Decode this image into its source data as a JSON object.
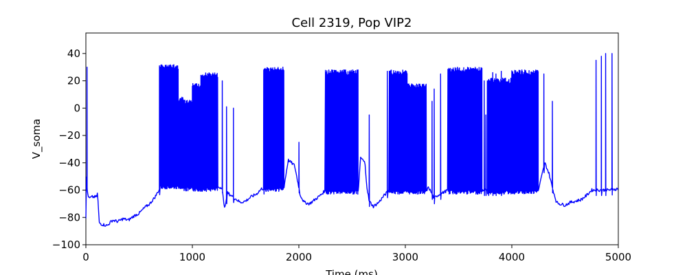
{
  "chart_data": {
    "type": "line",
    "title": "Cell 2319, Pop VIP2",
    "xlabel": "Time (ms)",
    "ylabel": "V_soma",
    "xlim": [
      0,
      5000
    ],
    "ylim": [
      -100,
      55
    ],
    "xticks": [
      0,
      1000,
      2000,
      3000,
      4000,
      5000
    ],
    "yticks": [
      -100,
      -80,
      -60,
      -40,
      -20,
      0,
      20,
      40
    ],
    "xtick_labels": [
      "0",
      "1000",
      "2000",
      "3000",
      "4000",
      "5000"
    ],
    "ytick_labels": [
      "−100",
      "−80",
      "−60",
      "−40",
      "−20",
      "0",
      "20",
      "40"
    ],
    "grid": false,
    "series": [
      {
        "color": "#0000ff",
        "baseline": [
          [
            0,
            -80
          ],
          [
            5,
            -50
          ],
          [
            15,
            -62
          ],
          [
            30,
            -66
          ],
          [
            60,
            -65
          ],
          [
            100,
            -65
          ],
          [
            110,
            -62
          ],
          [
            125,
            -84
          ],
          [
            150,
            -85
          ],
          [
            200,
            -86
          ],
          [
            250,
            -82
          ],
          [
            300,
            -83
          ],
          [
            350,
            -81
          ],
          [
            400,
            -82
          ],
          [
            450,
            -79
          ],
          [
            500,
            -77
          ],
          [
            550,
            -73
          ],
          [
            600,
            -70
          ],
          [
            650,
            -65
          ],
          [
            700,
            -58
          ],
          [
            1280,
            -58
          ],
          [
            1300,
            -74
          ],
          [
            1330,
            -62
          ],
          [
            1400,
            -66
          ],
          [
            1450,
            -69
          ],
          [
            1500,
            -68
          ],
          [
            1550,
            -65
          ],
          [
            1600,
            -63
          ],
          [
            1650,
            -59
          ],
          [
            1860,
            -58
          ],
          [
            1900,
            -38
          ],
          [
            1960,
            -42
          ],
          [
            2000,
            -58
          ],
          [
            2010,
            -63
          ],
          [
            2050,
            -69
          ],
          [
            2100,
            -70
          ],
          [
            2150,
            -67
          ],
          [
            2200,
            -64
          ],
          [
            2250,
            -60
          ],
          [
            2560,
            -60
          ],
          [
            2580,
            -36
          ],
          [
            2620,
            -40
          ],
          [
            2640,
            -58
          ],
          [
            2660,
            -68
          ],
          [
            2700,
            -72
          ],
          [
            2750,
            -69
          ],
          [
            2800,
            -64
          ],
          [
            2850,
            -60
          ],
          [
            3200,
            -60
          ],
          [
            3220,
            -58
          ],
          [
            3270,
            -66
          ],
          [
            3300,
            -64
          ],
          [
            3350,
            -62
          ],
          [
            3400,
            -60
          ],
          [
            4250,
            -60
          ],
          [
            4310,
            -40
          ],
          [
            4350,
            -48
          ],
          [
            4380,
            -58
          ],
          [
            4420,
            -69
          ],
          [
            4450,
            -70
          ],
          [
            4500,
            -71
          ],
          [
            4550,
            -69
          ],
          [
            4600,
            -68
          ],
          [
            4650,
            -67
          ],
          [
            4700,
            -64
          ],
          [
            4750,
            -60
          ],
          [
            4800,
            -60
          ],
          [
            4900,
            -60
          ],
          [
            5000,
            -59
          ]
        ],
        "bursts": [
          {
            "start": 700,
            "end": 870,
            "peak": 32,
            "trough": -55
          },
          {
            "start": 870,
            "end": 920,
            "peak": 8,
            "trough": -55
          },
          {
            "start": 920,
            "end": 1000,
            "peak": 6,
            "trough": -58
          },
          {
            "start": 1000,
            "end": 1080,
            "peak": 18,
            "trough": -58
          },
          {
            "start": 1080,
            "end": 1240,
            "peak": 26,
            "trough": -58
          },
          {
            "start": 1670,
            "end": 1860,
            "peak": 30,
            "trough": -58
          },
          {
            "start": 2250,
            "end": 2560,
            "peak": 28,
            "trough": -60
          },
          {
            "start": 2850,
            "end": 3020,
            "peak": 28,
            "trough": -60
          },
          {
            "start": 3020,
            "end": 3200,
            "peak": 18,
            "trough": -60
          },
          {
            "start": 3400,
            "end": 3720,
            "peak": 30,
            "trough": -60
          },
          {
            "start": 3770,
            "end": 4000,
            "peak": 22,
            "trough": -60
          },
          {
            "start": 4000,
            "end": 4250,
            "peak": 28,
            "trough": -60
          }
        ],
        "spikes": [
          [
            10,
            30
          ],
          [
            690,
            31
          ],
          [
            1280,
            20
          ],
          [
            1320,
            1
          ],
          [
            1385,
            0
          ],
          [
            1670,
            28
          ],
          [
            2000,
            -25
          ],
          [
            2660,
            -5
          ],
          [
            2830,
            27
          ],
          [
            3250,
            5
          ],
          [
            3270,
            14
          ],
          [
            3330,
            25
          ],
          [
            3740,
            20
          ],
          [
            3755,
            -5
          ],
          [
            3780,
            -10
          ],
          [
            3820,
            26
          ],
          [
            3850,
            25
          ],
          [
            3900,
            27
          ],
          [
            4300,
            25
          ],
          [
            4380,
            5
          ],
          [
            4790,
            35
          ],
          [
            4840,
            38
          ],
          [
            4880,
            40
          ],
          [
            4940,
            40
          ]
        ]
      }
    ]
  }
}
